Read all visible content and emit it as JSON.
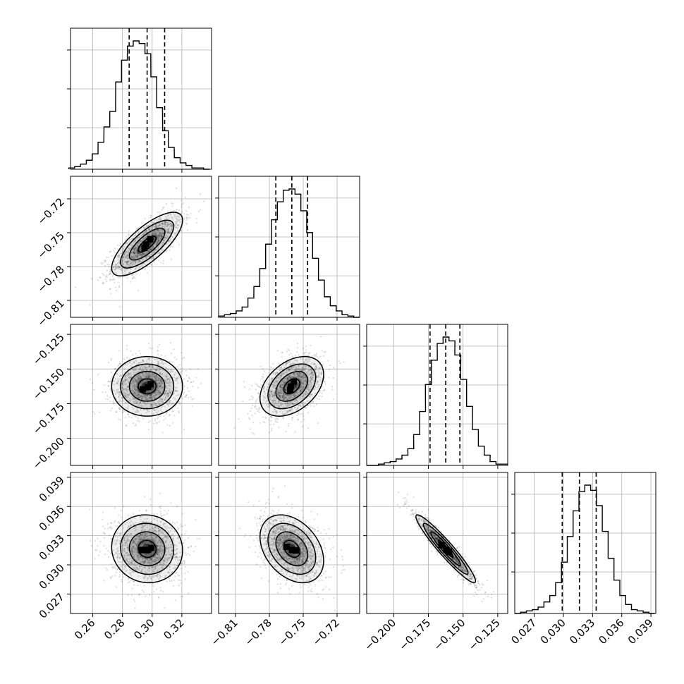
{
  "chart_data": {
    "type": "corner",
    "title": "",
    "parameters": [
      {
        "range": [
          0.245,
          0.34
        ],
        "ticks": [
          0.26,
          0.28,
          0.3,
          0.32
        ],
        "tick_labels": [
          "0.26",
          "0.28",
          "0.30",
          "0.32"
        ],
        "quantiles": [
          0.2845,
          0.2966,
          0.3084
        ],
        "hist_x": [
          0.2458,
          0.2497,
          0.2537,
          0.2576,
          0.2616,
          0.2655,
          0.2695,
          0.2734,
          0.2774,
          0.2813,
          0.2853,
          0.2892,
          0.2932,
          0.2971,
          0.3011,
          0.305,
          0.309,
          0.3129,
          0.3169,
          0.3208,
          0.3248,
          0.3287,
          0.3327,
          0.3366
        ],
        "hist_y": [
          1,
          2,
          4,
          7,
          12,
          21,
          33,
          45,
          68,
          85,
          96,
          100,
          98,
          90,
          72,
          48,
          30,
          17,
          9,
          5,
          3,
          1,
          1,
          0
        ]
      },
      {
        "range": [
          -0.825,
          -0.7
        ],
        "ticks": [
          -0.81,
          -0.78,
          -0.75,
          -0.72
        ],
        "tick_labels": [
          "−0.81",
          "−0.78",
          "−0.75",
          "−0.72"
        ],
        "quantiles": [
          -0.7743,
          -0.7601,
          -0.7461
        ],
        "hist_x": [
          -0.8224,
          -0.8172,
          -0.812,
          -0.8068,
          -0.8016,
          -0.7964,
          -0.7911,
          -0.7859,
          -0.7807,
          -0.7755,
          -0.7703,
          -0.7651,
          -0.7599,
          -0.7547,
          -0.7495,
          -0.7443,
          -0.7391,
          -0.7339,
          -0.7286,
          -0.7234,
          -0.7182,
          -0.713,
          -0.7078,
          -0.7026
        ],
        "hist_y": [
          1,
          2,
          3,
          5,
          8,
          15,
          24,
          38,
          57,
          76,
          90,
          99,
          100,
          96,
          83,
          66,
          46,
          29,
          16,
          9,
          5,
          2,
          1,
          0
        ]
      },
      {
        "range": [
          -0.2195,
          -0.1178
        ],
        "ticks": [
          -0.2,
          -0.175,
          -0.15,
          -0.125
        ],
        "tick_labels": [
          "−0.200",
          "−0.175",
          "−0.150",
          "−0.125"
        ],
        "quantiles": [
          -0.1738,
          -0.1625,
          -0.1523
        ],
        "hist_x": [
          -0.2174,
          -0.2131,
          -0.2089,
          -0.2047,
          -0.2004,
          -0.1962,
          -0.1919,
          -0.1877,
          -0.1835,
          -0.1792,
          -0.175,
          -0.1707,
          -0.1665,
          -0.1623,
          -0.158,
          -0.1538,
          -0.1496,
          -0.1453,
          -0.1411,
          -0.1368,
          -0.1326,
          -0.1284,
          -0.1241,
          -0.1199
        ],
        "hist_y": [
          0,
          0,
          1,
          2,
          3,
          5,
          8,
          13,
          24,
          42,
          63,
          82,
          95,
          100,
          97,
          86,
          67,
          46,
          28,
          15,
          8,
          3,
          1,
          1
        ]
      },
      {
        "range": [
          0.025,
          0.0395
        ],
        "ticks": [
          0.027,
          0.03,
          0.033,
          0.036,
          0.039
        ],
        "tick_labels": [
          "0.027",
          "0.030",
          "0.033",
          "0.036",
          "0.039"
        ],
        "quantiles": [
          0.02988,
          0.03165,
          0.03337
        ],
        "hist_x": [
          0.0253,
          0.0259,
          0.0265,
          0.0271,
          0.0277,
          0.0283,
          0.0289,
          0.0295,
          0.0301,
          0.0307,
          0.0313,
          0.0319,
          0.0325,
          0.0331,
          0.0337,
          0.0343,
          0.0349,
          0.0355,
          0.0361,
          0.0367,
          0.0373,
          0.0379,
          0.0385,
          0.0391
        ],
        "hist_y": [
          0,
          1,
          2,
          3,
          5,
          9,
          14,
          24,
          40,
          60,
          80,
          95,
          100,
          96,
          84,
          64,
          43,
          26,
          14,
          7,
          3,
          2,
          1,
          0
        ]
      }
    ],
    "pairs": [
      {
        "row": 1,
        "col": 0,
        "mean": [
          0.2966,
          -0.7601
        ],
        "correlation": 0.75
      },
      {
        "row": 2,
        "col": 0,
        "mean": [
          0.2966,
          -0.1625
        ],
        "correlation": 0.0
      },
      {
        "row": 2,
        "col": 1,
        "mean": [
          -0.7601,
          -0.1625
        ],
        "correlation": 0.4
      },
      {
        "row": 3,
        "col": 0,
        "mean": [
          0.2966,
          0.03165
        ],
        "correlation": -0.05
      },
      {
        "row": 3,
        "col": 1,
        "mean": [
          -0.7601,
          0.03165
        ],
        "correlation": -0.35
      },
      {
        "row": 3,
        "col": 2,
        "mean": [
          -0.1625,
          0.03165
        ],
        "correlation": -0.95
      }
    ],
    "contour_sigma_levels": [
      0.5,
      1.0,
      1.5,
      2.0
    ],
    "grid": true,
    "colors": {
      "line": "#000000",
      "grid": "#b0b0b0",
      "points": "#000000",
      "density_dark": "#000000"
    }
  }
}
